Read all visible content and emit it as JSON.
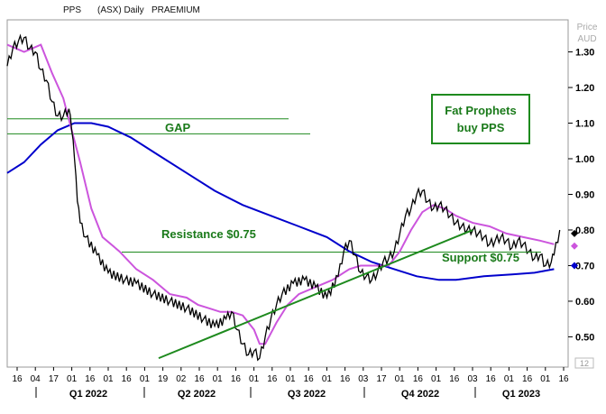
{
  "header": {
    "symbol": "PPS",
    "exchange_period": "(ASX) Daily",
    "name": "PRAEMIUM"
  },
  "chart_data": {
    "type": "line",
    "yaxis_title_line1": "Price",
    "yaxis_title_line2": "AUD",
    "yticks": [
      "1.30",
      "1.20",
      "1.10",
      "1.00",
      "0.90",
      "0.80",
      "0.70",
      "0.60",
      "0.50"
    ],
    "ytick_values": [
      1.3,
      1.2,
      1.1,
      1.0,
      0.9,
      0.8,
      0.7,
      0.6,
      0.5
    ],
    "ylim": [
      0.415,
      1.39
    ],
    "day_ticks": [
      "16",
      "04",
      "17",
      "01",
      "16",
      "01",
      "16",
      "01",
      "19",
      "02",
      "16",
      "01",
      "16",
      "01",
      "16",
      "01",
      "16",
      "01",
      "16",
      "03",
      "17",
      "01",
      "16",
      "01",
      "16",
      "03",
      "16",
      "01",
      "16",
      "01",
      "16"
    ],
    "quarter_labels": [
      "Q1 2022",
      "Q2 2022",
      "Q3 2022",
      "Q4 2022",
      "Q1 2023"
    ],
    "price_flag_small": "12",
    "annotations": {
      "gap": "GAP",
      "resistance": "Resistance $0.75",
      "support": "Support $0.75",
      "note_line1": "Fat Prophets",
      "note_line2": "buy PPS"
    },
    "gap_levels": [
      1.112,
      1.07
    ],
    "resistance_level": 0.738,
    "support_level": [
      0.695,
      0.738
    ],
    "trendline": [
      {
        "x": 0.27,
        "y": 0.44
      },
      {
        "x": 0.83,
        "y": 0.8
      }
    ],
    "series": [
      {
        "name": "price",
        "color": "#000000",
        "points": [
          [
            0.0,
            1.26
          ],
          [
            0.01,
            1.31
          ],
          [
            0.02,
            1.33
          ],
          [
            0.03,
            1.34
          ],
          [
            0.04,
            1.31
          ],
          [
            0.05,
            1.3
          ],
          [
            0.06,
            1.25
          ],
          [
            0.07,
            1.22
          ],
          [
            0.08,
            1.16
          ],
          [
            0.09,
            1.12
          ],
          [
            0.1,
            1.12
          ],
          [
            0.11,
            1.14
          ],
          [
            0.115,
            1.08
          ],
          [
            0.12,
            1.0
          ],
          [
            0.125,
            0.88
          ],
          [
            0.13,
            0.82
          ],
          [
            0.14,
            0.78
          ],
          [
            0.16,
            0.73
          ],
          [
            0.18,
            0.68
          ],
          [
            0.21,
            0.66
          ],
          [
            0.23,
            0.65
          ],
          [
            0.26,
            0.62
          ],
          [
            0.29,
            0.6
          ],
          [
            0.32,
            0.58
          ],
          [
            0.35,
            0.55
          ],
          [
            0.37,
            0.53
          ],
          [
            0.39,
            0.55
          ],
          [
            0.4,
            0.57
          ],
          [
            0.41,
            0.52
          ],
          [
            0.42,
            0.48
          ],
          [
            0.43,
            0.45
          ],
          [
            0.44,
            0.46
          ],
          [
            0.45,
            0.44
          ],
          [
            0.46,
            0.5
          ],
          [
            0.47,
            0.55
          ],
          [
            0.48,
            0.59
          ],
          [
            0.49,
            0.62
          ],
          [
            0.51,
            0.65
          ],
          [
            0.53,
            0.66
          ],
          [
            0.55,
            0.64
          ],
          [
            0.57,
            0.61
          ],
          [
            0.59,
            0.67
          ],
          [
            0.6,
            0.74
          ],
          [
            0.61,
            0.77
          ],
          [
            0.62,
            0.73
          ],
          [
            0.63,
            0.68
          ],
          [
            0.64,
            0.67
          ],
          [
            0.65,
            0.66
          ],
          [
            0.66,
            0.68
          ],
          [
            0.67,
            0.71
          ],
          [
            0.68,
            0.72
          ],
          [
            0.69,
            0.74
          ],
          [
            0.7,
            0.79
          ],
          [
            0.71,
            0.84
          ],
          [
            0.72,
            0.86
          ],
          [
            0.73,
            0.9
          ],
          [
            0.74,
            0.91
          ],
          [
            0.75,
            0.88
          ],
          [
            0.76,
            0.86
          ],
          [
            0.77,
            0.87
          ],
          [
            0.78,
            0.86
          ],
          [
            0.79,
            0.84
          ],
          [
            0.8,
            0.82
          ],
          [
            0.81,
            0.81
          ],
          [
            0.82,
            0.8
          ],
          [
            0.83,
            0.8
          ],
          [
            0.84,
            0.79
          ],
          [
            0.85,
            0.78
          ],
          [
            0.86,
            0.76
          ],
          [
            0.87,
            0.77
          ],
          [
            0.88,
            0.78
          ],
          [
            0.89,
            0.77
          ],
          [
            0.9,
            0.75
          ],
          [
            0.91,
            0.77
          ],
          [
            0.92,
            0.76
          ],
          [
            0.93,
            0.74
          ],
          [
            0.94,
            0.72
          ],
          [
            0.95,
            0.73
          ],
          [
            0.96,
            0.7
          ],
          [
            0.97,
            0.71
          ],
          [
            0.975,
            0.73
          ],
          [
            0.985,
            0.8
          ]
        ]
      },
      {
        "name": "fast moving average",
        "color": "#cc55dd",
        "points": [
          [
            0.0,
            1.32
          ],
          [
            0.03,
            1.3
          ],
          [
            0.06,
            1.32
          ],
          [
            0.08,
            1.24
          ],
          [
            0.1,
            1.17
          ],
          [
            0.11,
            1.11
          ],
          [
            0.13,
            0.99
          ],
          [
            0.15,
            0.86
          ],
          [
            0.17,
            0.78
          ],
          [
            0.2,
            0.74
          ],
          [
            0.23,
            0.69
          ],
          [
            0.26,
            0.66
          ],
          [
            0.29,
            0.62
          ],
          [
            0.32,
            0.61
          ],
          [
            0.34,
            0.59
          ],
          [
            0.36,
            0.58
          ],
          [
            0.38,
            0.57
          ],
          [
            0.4,
            0.57
          ],
          [
            0.42,
            0.56
          ],
          [
            0.44,
            0.52
          ],
          [
            0.45,
            0.48
          ],
          [
            0.46,
            0.48
          ],
          [
            0.48,
            0.54
          ],
          [
            0.5,
            0.59
          ],
          [
            0.52,
            0.62
          ],
          [
            0.55,
            0.64
          ],
          [
            0.58,
            0.66
          ],
          [
            0.61,
            0.69
          ],
          [
            0.63,
            0.7
          ],
          [
            0.65,
            0.7
          ],
          [
            0.68,
            0.7
          ],
          [
            0.7,
            0.74
          ],
          [
            0.72,
            0.8
          ],
          [
            0.74,
            0.85
          ],
          [
            0.76,
            0.87
          ],
          [
            0.78,
            0.86
          ],
          [
            0.8,
            0.84
          ],
          [
            0.83,
            0.82
          ],
          [
            0.86,
            0.81
          ],
          [
            0.89,
            0.79
          ],
          [
            0.92,
            0.78
          ],
          [
            0.95,
            0.77
          ],
          [
            0.975,
            0.76
          ]
        ]
      },
      {
        "name": "slow moving average",
        "color": "#0000cc",
        "points": [
          [
            0.0,
            0.96
          ],
          [
            0.03,
            0.99
          ],
          [
            0.06,
            1.04
          ],
          [
            0.09,
            1.08
          ],
          [
            0.12,
            1.1
          ],
          [
            0.15,
            1.1
          ],
          [
            0.18,
            1.09
          ],
          [
            0.22,
            1.06
          ],
          [
            0.27,
            1.01
          ],
          [
            0.32,
            0.96
          ],
          [
            0.37,
            0.91
          ],
          [
            0.42,
            0.87
          ],
          [
            0.47,
            0.84
          ],
          [
            0.52,
            0.81
          ],
          [
            0.57,
            0.78
          ],
          [
            0.61,
            0.74
          ],
          [
            0.65,
            0.71
          ],
          [
            0.69,
            0.69
          ],
          [
            0.73,
            0.67
          ],
          [
            0.77,
            0.66
          ],
          [
            0.8,
            0.66
          ],
          [
            0.85,
            0.67
          ],
          [
            0.9,
            0.675
          ],
          [
            0.94,
            0.68
          ],
          [
            0.975,
            0.69
          ]
        ]
      }
    ],
    "price_markers": [
      {
        "value": 0.79,
        "color": "#000000"
      },
      {
        "value": 0.755,
        "color": "#cc55dd"
      },
      {
        "value": 0.7,
        "color": "#0000cc"
      }
    ]
  }
}
